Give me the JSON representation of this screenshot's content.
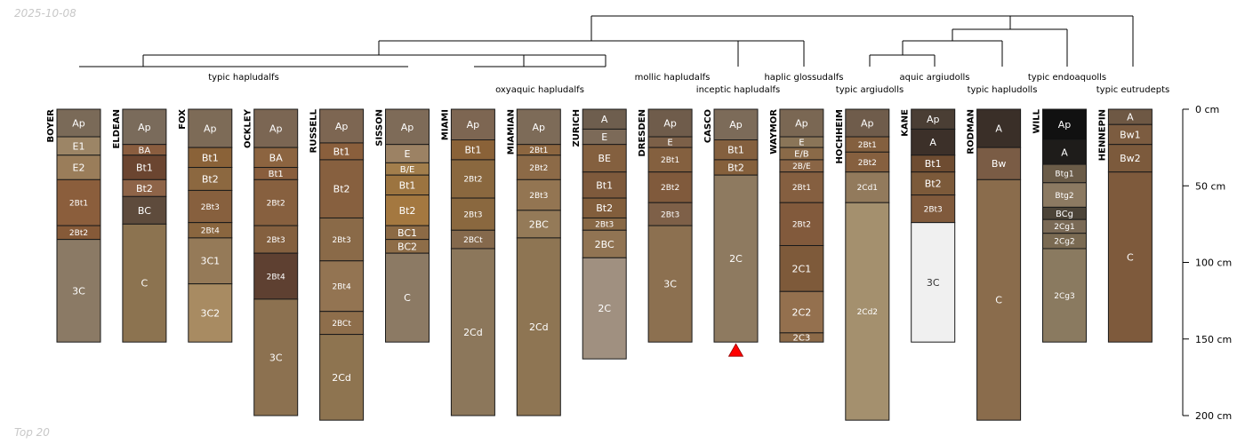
{
  "date": "2025-10-08",
  "footer": "Top 20",
  "depth_axis": {
    "max_cm": 200,
    "ticks": [
      "0 cm",
      "50 cm",
      "100 cm",
      "150 cm",
      "200 cm"
    ],
    "tick_values": [
      0,
      50,
      100,
      150,
      200
    ]
  },
  "taxonomy_labels": [
    "typic hapludalfs",
    "oxyaquic hapludalfs",
    "mollic hapludalfs",
    "inceptic hapludalfs",
    "haplic glossudalfs",
    "typic argiudolls",
    "aquic argiudolls",
    "typic hapludolls",
    "typic endoaquolls",
    "typic eutrudepts"
  ],
  "marker": {
    "profile": "CASCO",
    "color": "#ff0000"
  },
  "profiles": [
    {
      "name": "BOYER",
      "horizons": [
        {
          "name": "Ap",
          "top": 0,
          "bottom": 18,
          "color": "#7a6a58"
        },
        {
          "name": "E1",
          "top": 18,
          "bottom": 30,
          "color": "#9c8566"
        },
        {
          "name": "E2",
          "top": 30,
          "bottom": 46,
          "color": "#9a7d5a"
        },
        {
          "name": "2Bt1",
          "top": 46,
          "bottom": 76,
          "color": "#8b5e3c"
        },
        {
          "name": "2Bt2",
          "top": 76,
          "bottom": 85,
          "color": "#865a38"
        },
        {
          "name": "3C",
          "top": 85,
          "bottom": 152,
          "color": "#8b7a65"
        }
      ]
    },
    {
      "name": "ELDEAN",
      "horizons": [
        {
          "name": "Ap",
          "top": 0,
          "bottom": 23,
          "color": "#7a6b5b"
        },
        {
          "name": "BA",
          "top": 23,
          "bottom": 30,
          "color": "#8a5d3f"
        },
        {
          "name": "Bt1",
          "top": 30,
          "bottom": 46,
          "color": "#6b4530"
        },
        {
          "name": "Bt2",
          "top": 46,
          "bottom": 57,
          "color": "#8e6448"
        },
        {
          "name": "BC",
          "top": 57,
          "bottom": 75,
          "color": "#5e4b3c"
        },
        {
          "name": "C",
          "top": 75,
          "bottom": 152,
          "color": "#8c7350"
        }
      ]
    },
    {
      "name": "FOX",
      "horizons": [
        {
          "name": "Ap",
          "top": 0,
          "bottom": 25,
          "color": "#7d6b57"
        },
        {
          "name": "Bt1",
          "top": 25,
          "bottom": 38,
          "color": "#8a6238"
        },
        {
          "name": "Bt2",
          "top": 38,
          "bottom": 53,
          "color": "#8c6840"
        },
        {
          "name": "2Bt3",
          "top": 53,
          "bottom": 74,
          "color": "#87603e"
        },
        {
          "name": "2Bt4",
          "top": 74,
          "bottom": 84,
          "color": "#8a663f"
        },
        {
          "name": "3C1",
          "top": 84,
          "bottom": 114,
          "color": "#957a58"
        },
        {
          "name": "3C2",
          "top": 114,
          "bottom": 152,
          "color": "#a88b62"
        }
      ]
    },
    {
      "name": "OCKLEY",
      "horizons": [
        {
          "name": "Ap",
          "top": 0,
          "bottom": 25,
          "color": "#7b6653"
        },
        {
          "name": "BA",
          "top": 25,
          "bottom": 38,
          "color": "#8c6440"
        },
        {
          "name": "Bt1",
          "top": 38,
          "bottom": 46,
          "color": "#895e3d"
        },
        {
          "name": "2Bt2",
          "top": 46,
          "bottom": 76,
          "color": "#87603f"
        },
        {
          "name": "2Bt3",
          "top": 76,
          "bottom": 94,
          "color": "#84603f"
        },
        {
          "name": "2Bt4",
          "top": 94,
          "bottom": 124,
          "color": "#5e4031"
        },
        {
          "name": "3C",
          "top": 124,
          "bottom": 200,
          "color": "#8c7150"
        }
      ]
    },
    {
      "name": "RUSSELL",
      "horizons": [
        {
          "name": "Ap",
          "top": 0,
          "bottom": 22,
          "color": "#7d6652"
        },
        {
          "name": "Bt1",
          "top": 22,
          "bottom": 33,
          "color": "#8a5f3c"
        },
        {
          "name": "Bt2",
          "top": 33,
          "bottom": 71,
          "color": "#87603f"
        },
        {
          "name": "2Bt3",
          "top": 71,
          "bottom": 99,
          "color": "#8a6a48"
        },
        {
          "name": "2Bt4",
          "top": 99,
          "bottom": 132,
          "color": "#937452"
        },
        {
          "name": "2BCt",
          "top": 132,
          "bottom": 147,
          "color": "#8e6e4b"
        },
        {
          "name": "2Cd",
          "top": 147,
          "bottom": 203,
          "color": "#8e7450"
        }
      ]
    },
    {
      "name": "SISSON",
      "horizons": [
        {
          "name": "Ap",
          "top": 0,
          "bottom": 23,
          "color": "#7e6b58"
        },
        {
          "name": "E",
          "top": 23,
          "bottom": 35,
          "color": "#9c8264"
        },
        {
          "name": "B/E",
          "top": 35,
          "bottom": 43,
          "color": "#a27e4c"
        },
        {
          "name": "Bt1",
          "top": 43,
          "bottom": 56,
          "color": "#9c7440"
        },
        {
          "name": "Bt2",
          "top": 56,
          "bottom": 76,
          "color": "#a47840"
        },
        {
          "name": "BC1",
          "top": 76,
          "bottom": 85,
          "color": "#8c6a45"
        },
        {
          "name": "BC2",
          "top": 85,
          "bottom": 94,
          "color": "#8e6d48"
        },
        {
          "name": "C",
          "top": 94,
          "bottom": 152,
          "color": "#8c7a64"
        }
      ]
    },
    {
      "name": "MIAMI",
      "horizons": [
        {
          "name": "Ap",
          "top": 0,
          "bottom": 20,
          "color": "#7d6652"
        },
        {
          "name": "Bt1",
          "top": 20,
          "bottom": 33,
          "color": "#8a6238"
        },
        {
          "name": "2Bt2",
          "top": 33,
          "bottom": 58,
          "color": "#8a683f"
        },
        {
          "name": "2Bt3",
          "top": 58,
          "bottom": 79,
          "color": "#8a683f"
        },
        {
          "name": "2BCt",
          "top": 79,
          "bottom": 91,
          "color": "#85694c"
        },
        {
          "name": "2Cd",
          "top": 91,
          "bottom": 200,
          "color": "#8c775b"
        }
      ]
    },
    {
      "name": "MIAMIAN",
      "horizons": [
        {
          "name": "Ap",
          "top": 0,
          "bottom": 23,
          "color": "#7d6b58"
        },
        {
          "name": "2Bt1",
          "top": 23,
          "bottom": 30,
          "color": "#8c6640"
        },
        {
          "name": "2Bt2",
          "top": 30,
          "bottom": 46,
          "color": "#8c6a47"
        },
        {
          "name": "2Bt3",
          "top": 46,
          "bottom": 66,
          "color": "#937552"
        },
        {
          "name": "2BC",
          "top": 66,
          "bottom": 84,
          "color": "#947a58"
        },
        {
          "name": "2Cd",
          "top": 84,
          "bottom": 200,
          "color": "#8e7553"
        }
      ]
    },
    {
      "name": "ZURICH",
      "horizons": [
        {
          "name": "A",
          "top": 0,
          "bottom": 13,
          "color": "#6e5e4e"
        },
        {
          "name": "E",
          "top": 13,
          "bottom": 23,
          "color": "#7c6a58"
        },
        {
          "name": "BE",
          "top": 23,
          "bottom": 41,
          "color": "#84603f"
        },
        {
          "name": "Bt1",
          "top": 41,
          "bottom": 58,
          "color": "#7e5a3c"
        },
        {
          "name": "Bt2",
          "top": 58,
          "bottom": 71,
          "color": "#825e3c"
        },
        {
          "name": "2Bt3",
          "top": 71,
          "bottom": 79,
          "color": "#886845"
        },
        {
          "name": "2BC",
          "top": 79,
          "bottom": 97,
          "color": "#917453"
        },
        {
          "name": "2C",
          "top": 97,
          "bottom": 163,
          "color": "#a09080"
        }
      ]
    },
    {
      "name": "DRESDEN",
      "horizons": [
        {
          "name": "Ap",
          "top": 0,
          "bottom": 18,
          "color": "#6f5c4b"
        },
        {
          "name": "E",
          "top": 18,
          "bottom": 25,
          "color": "#7c6048"
        },
        {
          "name": "2Bt1",
          "top": 25,
          "bottom": 41,
          "color": "#84603f"
        },
        {
          "name": "2Bt2",
          "top": 41,
          "bottom": 61,
          "color": "#805a3c"
        },
        {
          "name": "2Bt3",
          "top": 61,
          "bottom": 76,
          "color": "#7e6048"
        },
        {
          "name": "3C",
          "top": 76,
          "bottom": 152,
          "color": "#8c7050"
        }
      ]
    },
    {
      "name": "CASCO",
      "horizons": [
        {
          "name": "Ap",
          "top": 0,
          "bottom": 20,
          "color": "#7c6b59"
        },
        {
          "name": "Bt1",
          "top": 20,
          "bottom": 33,
          "color": "#84603f"
        },
        {
          "name": "Bt2",
          "top": 33,
          "bottom": 43,
          "color": "#85603c"
        },
        {
          "name": "2C",
          "top": 43,
          "bottom": 152,
          "color": "#8e7a60"
        }
      ]
    },
    {
      "name": "WAYMOR",
      "horizons": [
        {
          "name": "Ap",
          "top": 0,
          "bottom": 18,
          "color": "#7a6753"
        },
        {
          "name": "E",
          "top": 18,
          "bottom": 25,
          "color": "#8a7558"
        },
        {
          "name": "E/B",
          "top": 25,
          "bottom": 33,
          "color": "#8a6a48"
        },
        {
          "name": "2B/E",
          "top": 33,
          "bottom": 41,
          "color": "#8a6545"
        },
        {
          "name": "2Bt1",
          "top": 41,
          "bottom": 61,
          "color": "#855f40"
        },
        {
          "name": "2Bt2",
          "top": 61,
          "bottom": 89,
          "color": "#825a3c"
        },
        {
          "name": "2C1",
          "top": 89,
          "bottom": 119,
          "color": "#7e5a3a"
        },
        {
          "name": "2C2",
          "top": 119,
          "bottom": 146,
          "color": "#94704e"
        },
        {
          "name": "2C3",
          "top": 146,
          "bottom": 152,
          "color": "#8c6a48"
        }
      ]
    },
    {
      "name": "HOCHHEIM",
      "horizons": [
        {
          "name": "Ap",
          "top": 0,
          "bottom": 18,
          "color": "#6f5c4b"
        },
        {
          "name": "2Bt1",
          "top": 18,
          "bottom": 28,
          "color": "#84603f"
        },
        {
          "name": "2Bt2",
          "top": 28,
          "bottom": 41,
          "color": "#86603f"
        },
        {
          "name": "2Cd1",
          "top": 41,
          "bottom": 61,
          "color": "#927a5c"
        },
        {
          "name": "2Cd2",
          "top": 61,
          "bottom": 203,
          "color": "#a4906e"
        }
      ]
    },
    {
      "name": "KANE",
      "horizons": [
        {
          "name": "Ap",
          "top": 0,
          "bottom": 13,
          "color": "#4a3e34"
        },
        {
          "name": "A",
          "top": 13,
          "bottom": 30,
          "color": "#3c3029"
        },
        {
          "name": "Bt1",
          "top": 30,
          "bottom": 41,
          "color": "#6e4c31"
        },
        {
          "name": "Bt2",
          "top": 41,
          "bottom": 56,
          "color": "#7c5a3a"
        },
        {
          "name": "2Bt3",
          "top": 56,
          "bottom": 74,
          "color": "#805a3c"
        },
        {
          "name": "3C",
          "top": 74,
          "bottom": 152,
          "color": "#f0f0f0"
        }
      ]
    },
    {
      "name": "RODMAN",
      "horizons": [
        {
          "name": "A",
          "top": 0,
          "bottom": 25,
          "color": "#3a2f28"
        },
        {
          "name": "Bw",
          "top": 25,
          "bottom": 46,
          "color": "#7a5c45"
        },
        {
          "name": "C",
          "top": 46,
          "bottom": 203,
          "color": "#8a6c4c"
        }
      ]
    },
    {
      "name": "WILL",
      "horizons": [
        {
          "name": "Ap",
          "top": 0,
          "bottom": 20,
          "color": "#111111"
        },
        {
          "name": "A",
          "top": 20,
          "bottom": 36,
          "color": "#1e1c1a"
        },
        {
          "name": "Btg1",
          "top": 36,
          "bottom": 48,
          "color": "#6b5c48"
        },
        {
          "name": "Btg2",
          "top": 48,
          "bottom": 64,
          "color": "#8c7a62"
        },
        {
          "name": "BCg",
          "top": 64,
          "bottom": 72,
          "color": "#4c4438"
        },
        {
          "name": "2Cg1",
          "top": 72,
          "bottom": 81,
          "color": "#7a6a56"
        },
        {
          "name": "2Cg2",
          "top": 81,
          "bottom": 91,
          "color": "#7a6a52"
        },
        {
          "name": "2Cg3",
          "top": 91,
          "bottom": 152,
          "color": "#8a7a60"
        }
      ]
    },
    {
      "name": "HENNEPIN",
      "horizons": [
        {
          "name": "A",
          "top": 0,
          "bottom": 10,
          "color": "#6e5844"
        },
        {
          "name": "Bw1",
          "top": 10,
          "bottom": 23,
          "color": "#7c5c40"
        },
        {
          "name": "Bw2",
          "top": 23,
          "bottom": 41,
          "color": "#7c5a3c"
        },
        {
          "name": "C",
          "top": 41,
          "bottom": 152,
          "color": "#7e5a3c"
        }
      ]
    }
  ]
}
